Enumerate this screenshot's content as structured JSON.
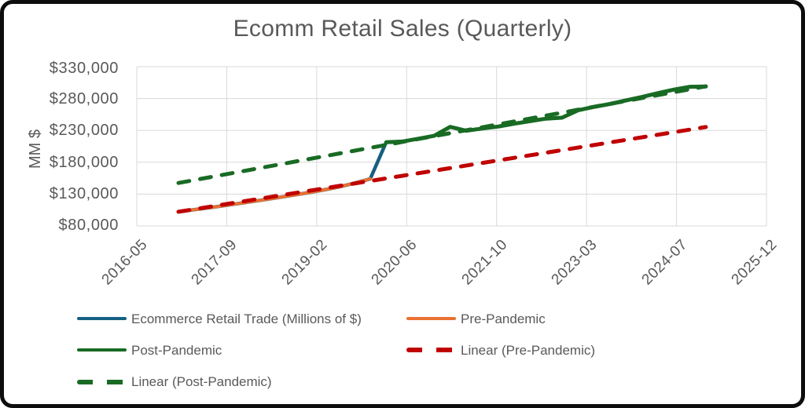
{
  "title": "Ecomm Retail Sales (Quarterly)",
  "y_axis": {
    "title": "MM $",
    "ticks": [
      "$80,000",
      "$130,000",
      "$180,000",
      "$230,000",
      "$280,000",
      "$330,000"
    ]
  },
  "x_axis": {
    "ticks": [
      "2016-05",
      "2017-09",
      "2019-02",
      "2020-06",
      "2021-10",
      "2023-03",
      "2024-07",
      "2025-12"
    ]
  },
  "legend": {
    "items": [
      {
        "label": "Ecommerce Retail Trade (Millions of $)",
        "color": "#156082",
        "dash": false
      },
      {
        "label": "Pre-Pandemic",
        "color": "#E97132",
        "dash": false
      },
      {
        "label": "Post-Pandemic",
        "color": "#196B24",
        "dash": false
      },
      {
        "label": "Linear (Pre-Pandemic)",
        "color": "#C00000",
        "dash": true
      },
      {
        "label": "Linear (Post-Pandemic)",
        "color": "#196B24",
        "dash": true
      }
    ]
  },
  "colors": {
    "text": "#595959",
    "gridline": "#d9d9d9",
    "frame": "#0d0d0d",
    "accent_blue": "#156082",
    "accent_orange": "#E97132",
    "accent_green": "#196B24",
    "accent_red": "#C00000"
  },
  "chart_data": {
    "type": "line",
    "title": "Ecomm Retail Sales (Quarterly)",
    "xlabel": "",
    "ylabel": "MM $",
    "y_unit": "millions of $",
    "frequency": "quarterly",
    "ylim": [
      80000,
      330000
    ],
    "y_tick_values": [
      80000,
      130000,
      180000,
      230000,
      280000,
      330000
    ],
    "x_tick_labels": [
      "2016-05",
      "2017-09",
      "2019-02",
      "2020-06",
      "2021-10",
      "2023-03",
      "2024-07",
      "2025-12"
    ],
    "grid": true,
    "legend_position": "bottom",
    "series": [
      {
        "name": "Ecommerce Retail Trade (Millions of $)",
        "color": "#156082",
        "style": "solid",
        "width": 4.5,
        "start_index": 0,
        "values": [
          102300,
          105600,
          108900,
          112400,
          116100,
          119800,
          123700,
          127600,
          131700,
          136200,
          141100,
          147000,
          154000,
          211500,
          212500,
          217000,
          221500,
          235500,
          229500,
          233000,
          236000,
          240500,
          244500,
          248500,
          250000,
          261500,
          267000,
          271500,
          277000,
          282500,
          288500,
          294000,
          298500,
          299000
        ]
      },
      {
        "name": "Pre-Pandemic",
        "color": "#E97132",
        "style": "solid",
        "width": 4,
        "start_index": 0,
        "values": [
          102300,
          105600,
          108900,
          112400,
          116100,
          119800,
          123700,
          127600,
          131700,
          136200,
          141100,
          147000,
          154000
        ]
      },
      {
        "name": "Post-Pandemic",
        "color": "#196B24",
        "style": "solid",
        "width": 5,
        "start_index": 13,
        "values": [
          211500,
          212500,
          217000,
          221500,
          235500,
          229500,
          233000,
          236000,
          240500,
          244500,
          248500,
          250000,
          261500,
          267000,
          271500,
          277000,
          282500,
          288500,
          294000,
          298500,
          299000
        ]
      },
      {
        "name": "Linear (Pre-Pandemic)",
        "color": "#C00000",
        "style": "dashed",
        "width": 5,
        "trend": {
          "start_index": 0,
          "start_value": 102300,
          "end_index": 33,
          "end_value": 235300
        }
      },
      {
        "name": "Linear (Post-Pandemic)",
        "color": "#196B24",
        "style": "dashed",
        "width": 5,
        "trend": {
          "start_index": 0,
          "start_value": 147500,
          "end_index": 33,
          "end_value": 299200
        }
      }
    ]
  }
}
